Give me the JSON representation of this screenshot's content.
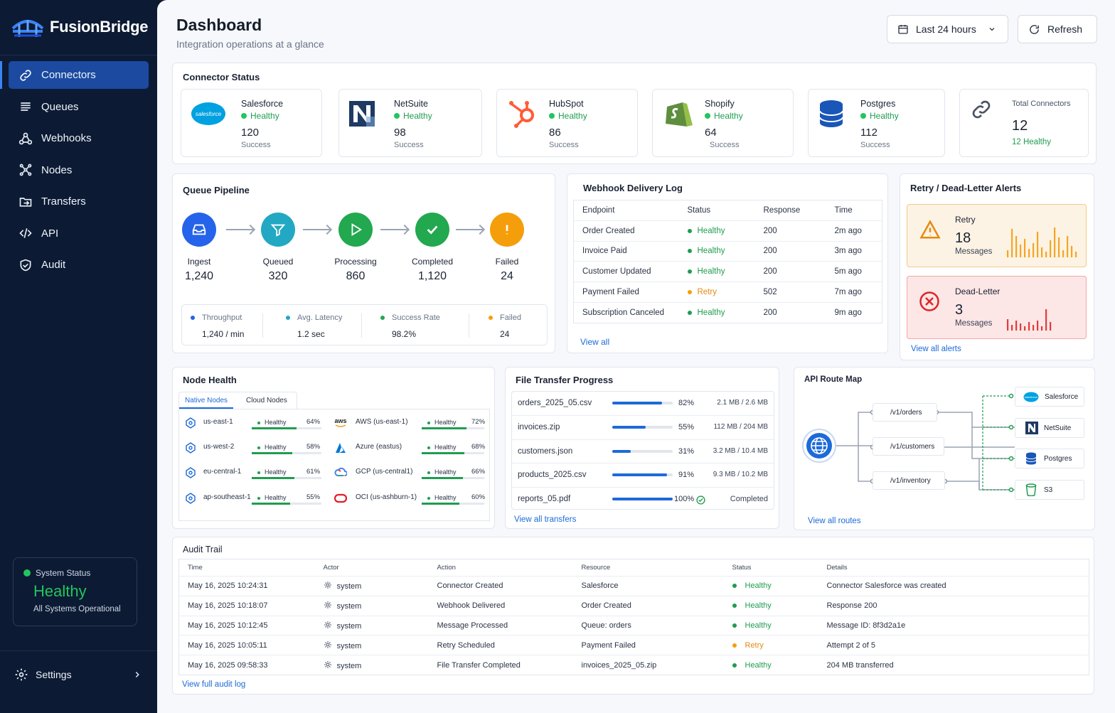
{
  "app": {
    "name": "FusionBridge"
  },
  "sidebar": {
    "items": [
      {
        "label": "Connectors",
        "icon": "link-icon",
        "active": true
      },
      {
        "label": "Queues",
        "icon": "list-icon"
      },
      {
        "label": "Webhooks",
        "icon": "webhook-icon"
      },
      {
        "label": "Nodes",
        "icon": "nodes-icon"
      },
      {
        "label": "Transfers",
        "icon": "folder-transfer-icon"
      },
      {
        "label": "API",
        "icon": "code-icon"
      },
      {
        "label": "Audit",
        "icon": "shield-check-icon"
      }
    ],
    "system_status": {
      "label": "System Status",
      "value": "Healthy",
      "sub": "All Systems Operational"
    },
    "settings_label": "Settings"
  },
  "header": {
    "title": "Dashboard",
    "subtitle": "Integration operations at a glance",
    "range_label": "Last 24 hours",
    "refresh_label": "Refresh"
  },
  "connector_status": {
    "title": "Connector Status",
    "connectors": [
      {
        "name": "Salesforce",
        "status": "Healthy",
        "count": "120",
        "caption": "Success",
        "logo_text": "salesforce"
      },
      {
        "name": "NetSuite",
        "status": "Healthy",
        "count": "98",
        "caption": "Success"
      },
      {
        "name": "HubSpot",
        "status": "Healthy",
        "count": "86",
        "caption": "Success"
      },
      {
        "name": "Shopify",
        "status": "Healthy",
        "count": "64",
        "caption": "Success"
      },
      {
        "name": "Postgres",
        "status": "Healthy",
        "count": "112",
        "caption": "Success"
      }
    ],
    "total": {
      "label": "Total Connectors",
      "value": "12",
      "healthy": "12 Healthy"
    }
  },
  "queue_pipeline": {
    "title": "Queue Pipeline",
    "stages": [
      {
        "label": "Ingest",
        "value": "1,240",
        "color": "#2563eb"
      },
      {
        "label": "Queued",
        "value": "320",
        "color": "#22a8c2"
      },
      {
        "label": "Processing",
        "value": "860",
        "color": "#22a84f"
      },
      {
        "label": "Completed",
        "value": "1,120",
        "color": "#22a84f"
      },
      {
        "label": "Failed",
        "value": "24",
        "color": "#f59e0b"
      }
    ],
    "stats": [
      {
        "label": "Throughput",
        "value": "1,240 / min",
        "color": "#2563eb"
      },
      {
        "label": "Avg. Latency",
        "value": "1.2 sec",
        "color": "#22a8c2"
      },
      {
        "label": "Success Rate",
        "value": "98.2%",
        "color": "#22a84f"
      },
      {
        "label": "Failed",
        "value": "24",
        "color": "#f59e0b"
      }
    ]
  },
  "webhook_log": {
    "title": "Webhook Delivery Log",
    "columns": [
      "Endpoint",
      "Status",
      "Response",
      "Time"
    ],
    "rows": [
      {
        "endpoint": "Order Created",
        "status": "Healthy",
        "response": "200",
        "time": "2m ago"
      },
      {
        "endpoint": "Invoice Paid",
        "status": "Healthy",
        "response": "200",
        "time": "3m ago"
      },
      {
        "endpoint": "Customer Updated",
        "status": "Healthy",
        "response": "200",
        "time": "5m ago"
      },
      {
        "endpoint": "Payment Failed",
        "status": "Retry",
        "response": "502",
        "time": "7m ago"
      },
      {
        "endpoint": "Subscription Canceled",
        "status": "Healthy",
        "response": "200",
        "time": "9m ago"
      }
    ],
    "view_all": "View all"
  },
  "alerts": {
    "title": "Retry / Dead-Letter Alerts",
    "retry": {
      "title": "Retry",
      "count": "18",
      "unit": "Messages"
    },
    "dead": {
      "title": "Dead-Letter",
      "count": "3",
      "unit": "Messages"
    },
    "view_all": "View all alerts"
  },
  "node_health": {
    "title": "Node Health",
    "tabs": [
      "Native Nodes",
      "Cloud Nodes"
    ],
    "native": [
      {
        "name": "us-east-1",
        "status": "Healthy",
        "pct": "64%",
        "level": 0.64
      },
      {
        "name": "us-west-2",
        "status": "Healthy",
        "pct": "58%",
        "level": 0.58
      },
      {
        "name": "eu-central-1",
        "status": "Healthy",
        "pct": "61%",
        "level": 0.61
      },
      {
        "name": "ap-southeast-1",
        "status": "Healthy",
        "pct": "55%",
        "level": 0.55
      }
    ],
    "cloud": [
      {
        "name": "AWS (us-east-1)",
        "status": "Healthy",
        "pct": "72%",
        "level": 0.72,
        "logo": "aws"
      },
      {
        "name": "Azure (eastus)",
        "status": "Healthy",
        "pct": "68%",
        "level": 0.68
      },
      {
        "name": "GCP (us-central1)",
        "status": "Healthy",
        "pct": "66%",
        "level": 0.66
      },
      {
        "name": "OCI (us-ashburn-1)",
        "status": "Healthy",
        "pct": "60%",
        "level": 0.6
      }
    ]
  },
  "file_transfer": {
    "title": "File Transfer Progress",
    "files": [
      {
        "name": "orders_2025_05.csv",
        "pct": "82%",
        "level": 0.82,
        "size": "2.1 MB / 2.6 MB"
      },
      {
        "name": "invoices.zip",
        "pct": "55%",
        "level": 0.55,
        "size": "112 MB / 204 MB"
      },
      {
        "name": "customers.json",
        "pct": "31%",
        "level": 0.31,
        "size": "3.2 MB / 10.4 MB"
      },
      {
        "name": "products_2025.csv",
        "pct": "91%",
        "level": 0.91,
        "size": "9.3 MB / 10.2 MB"
      },
      {
        "name": "reports_05.pdf",
        "pct": "100%",
        "level": 1.0,
        "size": "Completed"
      }
    ],
    "view_all": "View all transfers"
  },
  "api_routes": {
    "title": "API Route Map",
    "routes": [
      "/v1/orders",
      "/v1/customers",
      "/v1/inventory"
    ],
    "targets": [
      "Salesforce",
      "NetSuite",
      "Postgres",
      "S3"
    ],
    "target_logo_text": "salesforce",
    "view_all": "View all routes"
  },
  "audit": {
    "title": "Audit Trail",
    "columns": [
      "Time",
      "Actor",
      "Action",
      "Resource",
      "Status",
      "Details"
    ],
    "rows": [
      {
        "time": "May 16, 2025 10:24:31",
        "actor": "system",
        "action": "Connector Created",
        "resource": "Salesforce",
        "status": "Healthy",
        "details": "Connector Salesforce was created"
      },
      {
        "time": "May 16, 2025 10:18:07",
        "actor": "system",
        "action": "Webhook Delivered",
        "resource": "Order Created",
        "status": "Healthy",
        "details": "Response 200"
      },
      {
        "time": "May 16, 2025 10:12:45",
        "actor": "system",
        "action": "Message Processed",
        "resource": "Queue: orders",
        "status": "Healthy",
        "details": "Message ID: 8f3d2a1e"
      },
      {
        "time": "May 16, 2025 10:05:11",
        "actor": "system",
        "action": "Retry Scheduled",
        "resource": "Payment Failed",
        "status": "Retry",
        "details": "Attempt 2 of 5"
      },
      {
        "time": "May 16, 2025 09:58:33",
        "actor": "system",
        "action": "File Transfer Completed",
        "resource": "invoices_2025_05.zip",
        "status": "Healthy",
        "details": "204 MB transferred"
      }
    ],
    "view_all": "View full audit log"
  },
  "colors": {
    "healthy": "#22c55e",
    "retry": "#f59e0b",
    "accent": "#1d6ad8",
    "sidebar": "#0c1a33"
  }
}
